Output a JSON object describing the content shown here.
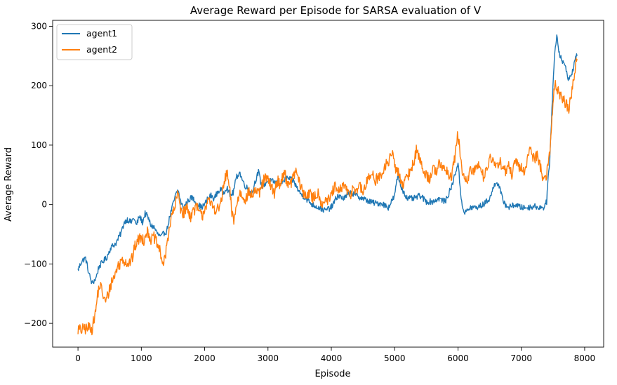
{
  "chart_data": {
    "type": "line",
    "title": "Average Reward per Episode for SARSA evaluation of V",
    "xlabel": "Episode",
    "ylabel": "Average Reward",
    "xlim": [
      -400,
      8300
    ],
    "ylim": [
      -240,
      310
    ],
    "xticks": [
      0,
      1000,
      2000,
      3000,
      4000,
      5000,
      6000,
      7000,
      8000
    ],
    "yticks": [
      -200,
      -100,
      0,
      100,
      200,
      300
    ],
    "grid": false,
    "legend": "top-left",
    "series": [
      {
        "name": "agent1",
        "color": "#1f77b4",
        "noise": 5,
        "points": [
          [
            0,
            -110
          ],
          [
            60,
            -95
          ],
          [
            120,
            -90
          ],
          [
            170,
            -115
          ],
          [
            220,
            -133
          ],
          [
            280,
            -125
          ],
          [
            330,
            -105
          ],
          [
            400,
            -95
          ],
          [
            450,
            -90
          ],
          [
            520,
            -72
          ],
          [
            600,
            -65
          ],
          [
            680,
            -48
          ],
          [
            730,
            -30
          ],
          [
            780,
            -25
          ],
          [
            840,
            -30
          ],
          [
            880,
            -22
          ],
          [
            920,
            -35
          ],
          [
            970,
            -20
          ],
          [
            1020,
            -30
          ],
          [
            1060,
            -15
          ],
          [
            1100,
            -20
          ],
          [
            1150,
            -35
          ],
          [
            1200,
            -38
          ],
          [
            1260,
            -50
          ],
          [
            1310,
            -55
          ],
          [
            1360,
            -48
          ],
          [
            1400,
            -45
          ],
          [
            1450,
            -20
          ],
          [
            1500,
            0
          ],
          [
            1540,
            15
          ],
          [
            1580,
            25
          ],
          [
            1620,
            5
          ],
          [
            1660,
            -5
          ],
          [
            1700,
            0
          ],
          [
            1750,
            8
          ],
          [
            1800,
            12
          ],
          [
            1850,
            5
          ],
          [
            1900,
            0
          ],
          [
            1950,
            -5
          ],
          [
            2000,
            0
          ],
          [
            2050,
            10
          ],
          [
            2100,
            15
          ],
          [
            2150,
            10
          ],
          [
            2200,
            20
          ],
          [
            2250,
            25
          ],
          [
            2300,
            20
          ],
          [
            2350,
            30
          ],
          [
            2400,
            15
          ],
          [
            2450,
            20
          ],
          [
            2500,
            45
          ],
          [
            2550,
            55
          ],
          [
            2600,
            40
          ],
          [
            2650,
            30
          ],
          [
            2700,
            25
          ],
          [
            2750,
            20
          ],
          [
            2800,
            40
          ],
          [
            2850,
            55
          ],
          [
            2900,
            30
          ],
          [
            2950,
            35
          ],
          [
            3000,
            40
          ],
          [
            3100,
            38
          ],
          [
            3200,
            35
          ],
          [
            3300,
            45
          ],
          [
            3400,
            40
          ],
          [
            3500,
            20
          ],
          [
            3600,
            10
          ],
          [
            3700,
            0
          ],
          [
            3800,
            -5
          ],
          [
            3900,
            -10
          ],
          [
            4000,
            -5
          ],
          [
            4100,
            15
          ],
          [
            4200,
            10
          ],
          [
            4300,
            20
          ],
          [
            4400,
            15
          ],
          [
            4500,
            10
          ],
          [
            4600,
            5
          ],
          [
            4700,
            2
          ],
          [
            4800,
            2
          ],
          [
            4900,
            -5
          ],
          [
            4950,
            5
          ],
          [
            5000,
            15
          ],
          [
            5050,
            50
          ],
          [
            5100,
            30
          ],
          [
            5150,
            20
          ],
          [
            5200,
            10
          ],
          [
            5300,
            10
          ],
          [
            5400,
            15
          ],
          [
            5500,
            5
          ],
          [
            5600,
            5
          ],
          [
            5700,
            10
          ],
          [
            5800,
            5
          ],
          [
            5900,
            30
          ],
          [
            5950,
            50
          ],
          [
            6000,
            70
          ],
          [
            6050,
            10
          ],
          [
            6100,
            -15
          ],
          [
            6150,
            -10
          ],
          [
            6200,
            -5
          ],
          [
            6300,
            -5
          ],
          [
            6400,
            0
          ],
          [
            6450,
            5
          ],
          [
            6500,
            10
          ],
          [
            6550,
            25
          ],
          [
            6600,
            40
          ],
          [
            6650,
            30
          ],
          [
            6700,
            10
          ],
          [
            6750,
            0
          ],
          [
            6800,
            -5
          ],
          [
            6900,
            0
          ],
          [
            7000,
            -5
          ],
          [
            7100,
            -5
          ],
          [
            7200,
            -3
          ],
          [
            7300,
            -5
          ],
          [
            7350,
            -5
          ],
          [
            7400,
            5
          ],
          [
            7450,
            80
          ],
          [
            7500,
            200
          ],
          [
            7530,
            260
          ],
          [
            7560,
            285
          ],
          [
            7600,
            255
          ],
          [
            7650,
            240
          ],
          [
            7700,
            230
          ],
          [
            7750,
            210
          ],
          [
            7800,
            220
          ],
          [
            7850,
            245
          ],
          [
            7880,
            250
          ]
        ]
      },
      {
        "name": "agent2",
        "color": "#ff7f0e",
        "noise": 10,
        "points": [
          [
            0,
            -210
          ],
          [
            60,
            -212
          ],
          [
            100,
            -208
          ],
          [
            140,
            -210
          ],
          [
            190,
            -205
          ],
          [
            220,
            -210
          ],
          [
            250,
            -195
          ],
          [
            280,
            -180
          ],
          [
            310,
            -150
          ],
          [
            350,
            -135
          ],
          [
            390,
            -150
          ],
          [
            430,
            -165
          ],
          [
            480,
            -150
          ],
          [
            530,
            -130
          ],
          [
            580,
            -120
          ],
          [
            620,
            -105
          ],
          [
            660,
            -100
          ],
          [
            700,
            -90
          ],
          [
            740,
            -95
          ],
          [
            800,
            -100
          ],
          [
            860,
            -90
          ],
          [
            900,
            -70
          ],
          [
            950,
            -60
          ],
          [
            1000,
            -55
          ],
          [
            1040,
            -60
          ],
          [
            1080,
            -45
          ],
          [
            1120,
            -50
          ],
          [
            1160,
            -60
          ],
          [
            1200,
            -55
          ],
          [
            1260,
            -70
          ],
          [
            1300,
            -80
          ],
          [
            1340,
            -100
          ],
          [
            1370,
            -95
          ],
          [
            1400,
            -70
          ],
          [
            1440,
            -40
          ],
          [
            1480,
            -20
          ],
          [
            1530,
            -5
          ],
          [
            1580,
            20
          ],
          [
            1620,
            -5
          ],
          [
            1660,
            -15
          ],
          [
            1720,
            -5
          ],
          [
            1780,
            -20
          ],
          [
            1820,
            -10
          ],
          [
            1880,
            -5
          ],
          [
            1920,
            -15
          ],
          [
            1960,
            -20
          ],
          [
            2000,
            -5
          ],
          [
            2050,
            5
          ],
          [
            2100,
            0
          ],
          [
            2150,
            -5
          ],
          [
            2200,
            -10
          ],
          [
            2250,
            0
          ],
          [
            2300,
            30
          ],
          [
            2350,
            55
          ],
          [
            2400,
            20
          ],
          [
            2430,
            -15
          ],
          [
            2460,
            -25
          ],
          [
            2500,
            -5
          ],
          [
            2550,
            20
          ],
          [
            2600,
            15
          ],
          [
            2650,
            10
          ],
          [
            2700,
            20
          ],
          [
            2750,
            15
          ],
          [
            2800,
            25
          ],
          [
            2850,
            15
          ],
          [
            2900,
            30
          ],
          [
            2950,
            45
          ],
          [
            3000,
            40
          ],
          [
            3050,
            30
          ],
          [
            3100,
            20
          ],
          [
            3150,
            40
          ],
          [
            3200,
            35
          ],
          [
            3250,
            55
          ],
          [
            3300,
            40
          ],
          [
            3350,
            30
          ],
          [
            3400,
            50
          ],
          [
            3450,
            55
          ],
          [
            3500,
            35
          ],
          [
            3550,
            20
          ],
          [
            3600,
            15
          ],
          [
            3650,
            20
          ],
          [
            3700,
            10
          ],
          [
            3750,
            15
          ],
          [
            3800,
            20
          ],
          [
            3850,
            0
          ],
          [
            3900,
            10
          ],
          [
            3950,
            5
          ],
          [
            4000,
            15
          ],
          [
            4050,
            30
          ],
          [
            4100,
            20
          ],
          [
            4150,
            25
          ],
          [
            4200,
            35
          ],
          [
            4250,
            20
          ],
          [
            4300,
            15
          ],
          [
            4350,
            30
          ],
          [
            4400,
            25
          ],
          [
            4450,
            30
          ],
          [
            4500,
            20
          ],
          [
            4550,
            35
          ],
          [
            4600,
            45
          ],
          [
            4650,
            55
          ],
          [
            4700,
            40
          ],
          [
            4750,
            50
          ],
          [
            4800,
            45
          ],
          [
            4850,
            65
          ],
          [
            4900,
            70
          ],
          [
            4950,
            90
          ],
          [
            5000,
            65
          ],
          [
            5050,
            55
          ],
          [
            5100,
            40
          ],
          [
            5150,
            35
          ],
          [
            5200,
            45
          ],
          [
            5250,
            60
          ],
          [
            5300,
            70
          ],
          [
            5350,
            95
          ],
          [
            5400,
            75
          ],
          [
            5450,
            55
          ],
          [
            5500,
            50
          ],
          [
            5550,
            45
          ],
          [
            5600,
            60
          ],
          [
            5650,
            55
          ],
          [
            5700,
            75
          ],
          [
            5750,
            55
          ],
          [
            5800,
            65
          ],
          [
            5850,
            45
          ],
          [
            5900,
            50
          ],
          [
            5950,
            80
          ],
          [
            6000,
            120
          ],
          [
            6050,
            65
          ],
          [
            6100,
            45
          ],
          [
            6150,
            35
          ],
          [
            6200,
            60
          ],
          [
            6250,
            55
          ],
          [
            6300,
            65
          ],
          [
            6350,
            70
          ],
          [
            6400,
            45
          ],
          [
            6450,
            60
          ],
          [
            6500,
            80
          ],
          [
            6550,
            70
          ],
          [
            6600,
            60
          ],
          [
            6650,
            75
          ],
          [
            6700,
            65
          ],
          [
            6750,
            55
          ],
          [
            6800,
            65
          ],
          [
            6850,
            50
          ],
          [
            6900,
            70
          ],
          [
            6950,
            65
          ],
          [
            7000,
            60
          ],
          [
            7050,
            55
          ],
          [
            7100,
            80
          ],
          [
            7150,
            95
          ],
          [
            7200,
            75
          ],
          [
            7250,
            85
          ],
          [
            7300,
            65
          ],
          [
            7350,
            40
          ],
          [
            7400,
            50
          ],
          [
            7450,
            90
          ],
          [
            7500,
            170
          ],
          [
            7530,
            210
          ],
          [
            7560,
            195
          ],
          [
            7600,
            185
          ],
          [
            7650,
            180
          ],
          [
            7700,
            170
          ],
          [
            7750,
            160
          ],
          [
            7800,
            190
          ],
          [
            7850,
            230
          ],
          [
            7880,
            245
          ]
        ]
      }
    ]
  }
}
